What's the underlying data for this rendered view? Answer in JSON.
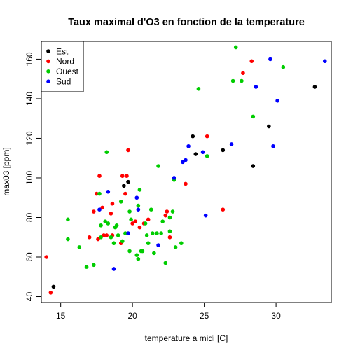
{
  "chart_data": {
    "type": "scatter",
    "title": "Taux maximal d'O3 en fonction de la temperature",
    "xlabel": "temperature a midi [C]",
    "ylabel": "max03 [ppm]",
    "xlim": [
      13.65,
      33.85
    ],
    "ylim": [
      37,
      169
    ],
    "xticks": [
      15,
      20,
      25,
      30
    ],
    "yticks": [
      40,
      60,
      80,
      100,
      120,
      140,
      160
    ],
    "grid": false,
    "legend_position": "top-left",
    "series": [
      {
        "name": "Est",
        "color": "#000000",
        "points": [
          [
            14.5,
            45
          ],
          [
            19.4,
            96
          ],
          [
            19.7,
            98
          ],
          [
            24.2,
            121
          ],
          [
            24.4,
            112
          ],
          [
            26.3,
            114
          ],
          [
            28.4,
            106
          ],
          [
            29.5,
            126
          ],
          [
            32.7,
            146
          ]
        ]
      },
      {
        "name": "Nord",
        "color": "#ff0000",
        "points": [
          [
            14.0,
            60
          ],
          [
            14.3,
            42
          ],
          [
            17.0,
            70
          ],
          [
            17.3,
            83
          ],
          [
            17.5,
            92
          ],
          [
            17.6,
            69
          ],
          [
            17.7,
            101
          ],
          [
            17.9,
            85
          ],
          [
            18.0,
            71
          ],
          [
            18.2,
            71
          ],
          [
            18.5,
            82
          ],
          [
            18.6,
            87
          ],
          [
            18.6,
            71
          ],
          [
            19.2,
            67
          ],
          [
            19.3,
            101
          ],
          [
            19.5,
            92
          ],
          [
            19.6,
            101
          ],
          [
            19.7,
            114
          ],
          [
            20.0,
            77
          ],
          [
            20.2,
            78
          ],
          [
            20.5,
            75
          ],
          [
            20.8,
            77
          ],
          [
            21.1,
            79
          ],
          [
            22.3,
            81
          ],
          [
            22.4,
            83
          ],
          [
            22.6,
            70
          ],
          [
            23.7,
            97
          ],
          [
            25.2,
            121
          ],
          [
            26.3,
            84
          ],
          [
            27.7,
            153
          ],
          [
            28.3,
            159
          ]
        ]
      },
      {
        "name": "Ouest",
        "color": "#00cd00",
        "points": [
          [
            15.5,
            79
          ],
          [
            15.5,
            69
          ],
          [
            16.3,
            65
          ],
          [
            16.8,
            55
          ],
          [
            17.3,
            56
          ],
          [
            17.7,
            92
          ],
          [
            17.8,
            76
          ],
          [
            17.8,
            70
          ],
          [
            18.1,
            78
          ],
          [
            18.2,
            113
          ],
          [
            18.3,
            77
          ],
          [
            18.5,
            70
          ],
          [
            18.7,
            67
          ],
          [
            18.8,
            75
          ],
          [
            18.9,
            76
          ],
          [
            19.0,
            71
          ],
          [
            19.2,
            88
          ],
          [
            19.3,
            68
          ],
          [
            19.5,
            72
          ],
          [
            19.8,
            83
          ],
          [
            19.8,
            63
          ],
          [
            19.9,
            79
          ],
          [
            20.3,
            61
          ],
          [
            20.4,
            59
          ],
          [
            20.4,
            86
          ],
          [
            20.5,
            94
          ],
          [
            20.6,
            63
          ],
          [
            20.7,
            63
          ],
          [
            20.9,
            77
          ],
          [
            21.0,
            71
          ],
          [
            21.1,
            67
          ],
          [
            21.3,
            84
          ],
          [
            21.4,
            72
          ],
          [
            21.5,
            62
          ],
          [
            21.7,
            72
          ],
          [
            21.8,
            106
          ],
          [
            22.0,
            72
          ],
          [
            22.1,
            78
          ],
          [
            22.3,
            57
          ],
          [
            22.6,
            73
          ],
          [
            22.6,
            80
          ],
          [
            22.8,
            83
          ],
          [
            22.9,
            99
          ],
          [
            23.0,
            65
          ],
          [
            23.4,
            67
          ],
          [
            24.6,
            145
          ],
          [
            25.2,
            111
          ],
          [
            27.0,
            149
          ],
          [
            27.2,
            166
          ],
          [
            27.6,
            149
          ],
          [
            28.4,
            131
          ],
          [
            30.5,
            156
          ]
        ]
      },
      {
        "name": "Sud",
        "color": "#0000ff",
        "points": [
          [
            17.7,
            84
          ],
          [
            18.3,
            93
          ],
          [
            18.7,
            54
          ],
          [
            19.7,
            72
          ],
          [
            20.3,
            90
          ],
          [
            20.4,
            84
          ],
          [
            21.8,
            66
          ],
          [
            22.9,
            100
          ],
          [
            23.5,
            108
          ],
          [
            23.7,
            109
          ],
          [
            23.9,
            116
          ],
          [
            24.9,
            113
          ],
          [
            25.1,
            81
          ],
          [
            26.9,
            117
          ],
          [
            28.6,
            146
          ],
          [
            29.6,
            160
          ],
          [
            29.8,
            116
          ],
          [
            30.1,
            139
          ],
          [
            33.4,
            159
          ]
        ]
      }
    ]
  }
}
